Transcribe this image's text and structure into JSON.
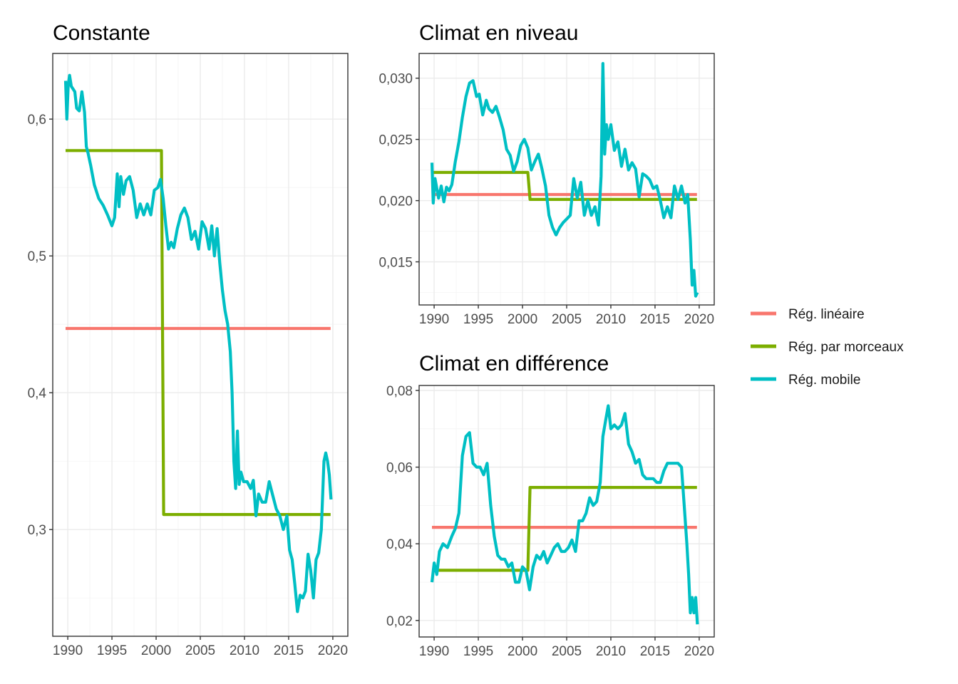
{
  "legend": {
    "items": [
      {
        "label": "Rég. linéaire",
        "color": "#F8766D"
      },
      {
        "label": "Rég. par morceaux",
        "color": "#7CAE00"
      },
      {
        "label": "Rég. mobile",
        "color": "#00BFC4"
      }
    ]
  },
  "chart_data": [
    {
      "type": "line",
      "title": "Constante",
      "xlabel": "",
      "ylabel": "",
      "xlim": [
        1988.3,
        2021.7
      ],
      "ylim": [
        0.222,
        0.648
      ],
      "x_ticks": [
        1990,
        1995,
        2000,
        2005,
        2010,
        2015,
        2020
      ],
      "x_tick_labels": [
        "1990",
        "1995",
        "2000",
        "2005",
        "2010",
        "2015",
        "2020"
      ],
      "y_ticks": [
        0.3,
        0.4,
        0.5,
        0.6
      ],
      "y_tick_labels": [
        "0,3",
        "0,4",
        "0,5",
        "0,6"
      ],
      "grid": true,
      "series": [
        {
          "name": "Rég. linéaire",
          "color": "#F8766D",
          "x": [
            1989.75,
            2019.75
          ],
          "y": [
            0.447,
            0.447
          ]
        },
        {
          "name": "Rég. par morceaux",
          "color": "#7CAE00",
          "x": [
            1989.75,
            2000.6,
            2000.85,
            2019.75
          ],
          "y": [
            0.577,
            0.577,
            0.311,
            0.311
          ]
        },
        {
          "name": "Rég. mobile",
          "color": "#00BFC4",
          "x": [
            1989.75,
            1989.9,
            1990.05,
            1990.2,
            1990.4,
            1990.6,
            1990.8,
            1991.0,
            1991.3,
            1991.6,
            1991.9,
            1992.1,
            1992.3,
            1992.6,
            1993.0,
            1993.5,
            1994.0,
            1994.5,
            1995.0,
            1995.3,
            1995.6,
            1995.8,
            1996.0,
            1996.3,
            1996.6,
            1997.0,
            1997.4,
            1997.8,
            1998.2,
            1998.6,
            1999.0,
            1999.4,
            1999.8,
            2000.2,
            2000.5,
            2000.8,
            2001.1,
            2001.4,
            2001.7,
            2002.0,
            2002.4,
            2002.8,
            2003.2,
            2003.6,
            2004.0,
            2004.4,
            2004.8,
            2005.2,
            2005.6,
            2006.0,
            2006.3,
            2006.6,
            2006.9,
            2007.2,
            2007.5,
            2007.8,
            2008.1,
            2008.4,
            2008.6,
            2008.8,
            2009.0,
            2009.2,
            2009.4,
            2009.6,
            2009.9,
            2010.3,
            2010.7,
            2011.0,
            2011.3,
            2011.6,
            2012.0,
            2012.4,
            2012.8,
            2013.2,
            2013.6,
            2014.0,
            2014.4,
            2014.8,
            2015.1,
            2015.4,
            2015.7,
            2016.0,
            2016.3,
            2016.6,
            2016.9,
            2017.2,
            2017.5,
            2017.8,
            2018.1,
            2018.4,
            2018.7,
            2019.0,
            2019.2,
            2019.4,
            2019.6,
            2019.8
          ],
          "y": [
            0.628,
            0.6,
            0.625,
            0.632,
            0.624,
            0.622,
            0.62,
            0.608,
            0.606,
            0.62,
            0.605,
            0.58,
            0.575,
            0.566,
            0.552,
            0.542,
            0.537,
            0.53,
            0.522,
            0.528,
            0.56,
            0.536,
            0.558,
            0.545,
            0.555,
            0.558,
            0.548,
            0.528,
            0.538,
            0.53,
            0.538,
            0.53,
            0.548,
            0.55,
            0.556,
            0.542,
            0.522,
            0.505,
            0.51,
            0.506,
            0.52,
            0.53,
            0.535,
            0.528,
            0.512,
            0.518,
            0.505,
            0.525,
            0.52,
            0.505,
            0.522,
            0.5,
            0.52,
            0.495,
            0.475,
            0.46,
            0.45,
            0.43,
            0.4,
            0.35,
            0.33,
            0.372,
            0.333,
            0.342,
            0.335,
            0.335,
            0.33,
            0.336,
            0.31,
            0.326,
            0.32,
            0.32,
            0.335,
            0.325,
            0.315,
            0.31,
            0.3,
            0.31,
            0.285,
            0.278,
            0.26,
            0.24,
            0.252,
            0.25,
            0.255,
            0.282,
            0.27,
            0.25,
            0.278,
            0.283,
            0.3,
            0.35,
            0.356,
            0.35,
            0.34,
            0.322
          ]
        }
      ]
    },
    {
      "type": "line",
      "title": "Climat en niveau",
      "xlabel": "",
      "ylabel": "",
      "xlim": [
        1988.3,
        2021.7
      ],
      "ylim": [
        0.01148,
        0.03202
      ],
      "x_ticks": [
        1990,
        1995,
        2000,
        2005,
        2010,
        2015,
        2020
      ],
      "x_tick_labels": [
        "1990",
        "1995",
        "2000",
        "2005",
        "2010",
        "2015",
        "2020"
      ],
      "y_ticks": [
        0.015,
        0.02,
        0.025,
        0.03
      ],
      "y_tick_labels": [
        "0,015",
        "0,020",
        "0,025",
        "0,030"
      ],
      "grid": true,
      "series": [
        {
          "name": "Rég. linéaire",
          "color": "#F8766D",
          "x": [
            1989.75,
            2019.75
          ],
          "y": [
            0.0205,
            0.0205
          ]
        },
        {
          "name": "Rég. par morceaux",
          "color": "#7CAE00",
          "x": [
            1989.75,
            2000.6,
            2000.85,
            2019.75
          ],
          "y": [
            0.0223,
            0.0223,
            0.0201,
            0.0201
          ]
        },
        {
          "name": "Rég. mobile",
          "color": "#00BFC4",
          "x": [
            1989.75,
            1989.9,
            1990.1,
            1990.3,
            1990.5,
            1990.8,
            1991.1,
            1991.4,
            1991.7,
            1992.0,
            1992.4,
            1992.8,
            1993.2,
            1993.6,
            1994.0,
            1994.4,
            1994.8,
            1995.1,
            1995.5,
            1995.9,
            1996.2,
            1996.6,
            1997.0,
            1997.4,
            1997.8,
            1998.2,
            1998.6,
            1999.0,
            1999.4,
            1999.8,
            2000.2,
            2000.6,
            2001.0,
            2001.4,
            2001.8,
            2002.2,
            2002.6,
            2003.0,
            2003.4,
            2003.8,
            2004.2,
            2004.6,
            2005.0,
            2005.4,
            2005.8,
            2006.2,
            2006.6,
            2007.0,
            2007.4,
            2007.8,
            2008.2,
            2008.6,
            2008.9,
            2009.1,
            2009.3,
            2009.5,
            2009.7,
            2010.0,
            2010.4,
            2010.8,
            2011.2,
            2011.6,
            2012.0,
            2012.4,
            2012.8,
            2013.2,
            2013.6,
            2014.0,
            2014.4,
            2014.8,
            2015.2,
            2015.6,
            2016.0,
            2016.4,
            2016.8,
            2017.2,
            2017.6,
            2018.0,
            2018.4,
            2018.7,
            2019.0,
            2019.2,
            2019.4,
            2019.6,
            2019.8
          ],
          "y": [
            0.0231,
            0.0198,
            0.0218,
            0.021,
            0.0202,
            0.0212,
            0.0199,
            0.0211,
            0.0208,
            0.0213,
            0.0232,
            0.0248,
            0.0268,
            0.0285,
            0.0296,
            0.0298,
            0.0285,
            0.0287,
            0.027,
            0.0282,
            0.0275,
            0.0272,
            0.0277,
            0.0268,
            0.0258,
            0.0242,
            0.0237,
            0.0224,
            0.0232,
            0.0245,
            0.025,
            0.0243,
            0.0225,
            0.0232,
            0.0238,
            0.0226,
            0.0212,
            0.0188,
            0.0178,
            0.0172,
            0.0178,
            0.0182,
            0.0185,
            0.0188,
            0.0218,
            0.0202,
            0.0215,
            0.0188,
            0.02,
            0.0188,
            0.0195,
            0.018,
            0.022,
            0.0312,
            0.0238,
            0.0262,
            0.025,
            0.0262,
            0.0241,
            0.0248,
            0.0228,
            0.0242,
            0.0225,
            0.0231,
            0.0226,
            0.0203,
            0.0222,
            0.022,
            0.0217,
            0.021,
            0.0212,
            0.02,
            0.0186,
            0.0195,
            0.0186,
            0.0212,
            0.0201,
            0.0212,
            0.0198,
            0.0205,
            0.0168,
            0.0131,
            0.0143,
            0.0122,
            0.0125
          ]
        }
      ]
    },
    {
      "type": "line",
      "title": "Climat en différence",
      "xlabel": "",
      "ylabel": "",
      "xlim": [
        1988.3,
        2021.7
      ],
      "ylim": [
        0.0157,
        0.0813
      ],
      "x_ticks": [
        1990,
        1995,
        2000,
        2005,
        2010,
        2015,
        2020
      ],
      "x_tick_labels": [
        "1990",
        "1995",
        "2000",
        "2005",
        "2010",
        "2015",
        "2020"
      ],
      "y_ticks": [
        0.02,
        0.04,
        0.06,
        0.08
      ],
      "y_tick_labels": [
        "0,02",
        "0,04",
        "0,06",
        "0,08"
      ],
      "grid": true,
      "series": [
        {
          "name": "Rég. linéaire",
          "color": "#F8766D",
          "x": [
            1989.75,
            2019.75
          ],
          "y": [
            0.0443,
            0.0443
          ]
        },
        {
          "name": "Rég. par morceaux",
          "color": "#7CAE00",
          "x": [
            1989.75,
            2000.6,
            2000.85,
            2019.75
          ],
          "y": [
            0.0331,
            0.0331,
            0.0547,
            0.0547
          ]
        },
        {
          "name": "Rég. mobile",
          "color": "#00BFC4",
          "x": [
            1989.75,
            1990.0,
            1990.3,
            1990.6,
            1991.0,
            1991.5,
            1992.0,
            1992.4,
            1992.8,
            1993.2,
            1993.6,
            1994.0,
            1994.4,
            1994.8,
            1995.2,
            1995.6,
            1996.0,
            1996.4,
            1996.8,
            1997.2,
            1997.6,
            1998.0,
            1998.4,
            1998.8,
            1999.2,
            1999.6,
            2000.0,
            2000.4,
            2000.8,
            2001.2,
            2001.6,
            2002.0,
            2002.4,
            2002.8,
            2003.2,
            2003.6,
            2004.0,
            2004.4,
            2004.8,
            2005.2,
            2005.6,
            2006.0,
            2006.4,
            2006.8,
            2007.2,
            2007.6,
            2008.0,
            2008.4,
            2008.8,
            2009.1,
            2009.4,
            2009.7,
            2010.0,
            2010.4,
            2010.8,
            2011.2,
            2011.6,
            2012.0,
            2012.4,
            2012.8,
            2013.2,
            2013.6,
            2014.0,
            2014.4,
            2014.8,
            2015.2,
            2015.6,
            2016.0,
            2016.4,
            2016.8,
            2017.2,
            2017.6,
            2018.0,
            2018.3,
            2018.6,
            2018.8,
            2019.0,
            2019.2,
            2019.4,
            2019.6,
            2019.8
          ],
          "y": [
            0.03,
            0.035,
            0.032,
            0.038,
            0.04,
            0.039,
            0.042,
            0.044,
            0.048,
            0.063,
            0.068,
            0.069,
            0.061,
            0.06,
            0.06,
            0.058,
            0.061,
            0.05,
            0.042,
            0.037,
            0.036,
            0.036,
            0.034,
            0.035,
            0.03,
            0.03,
            0.034,
            0.033,
            0.028,
            0.034,
            0.037,
            0.036,
            0.038,
            0.035,
            0.037,
            0.039,
            0.04,
            0.038,
            0.038,
            0.039,
            0.041,
            0.038,
            0.046,
            0.046,
            0.048,
            0.052,
            0.05,
            0.051,
            0.056,
            0.068,
            0.072,
            0.076,
            0.07,
            0.071,
            0.07,
            0.071,
            0.074,
            0.066,
            0.064,
            0.061,
            0.062,
            0.058,
            0.057,
            0.057,
            0.057,
            0.056,
            0.056,
            0.059,
            0.061,
            0.061,
            0.061,
            0.061,
            0.06,
            0.05,
            0.04,
            0.032,
            0.022,
            0.026,
            0.022,
            0.026,
            0.019
          ]
        }
      ]
    }
  ]
}
